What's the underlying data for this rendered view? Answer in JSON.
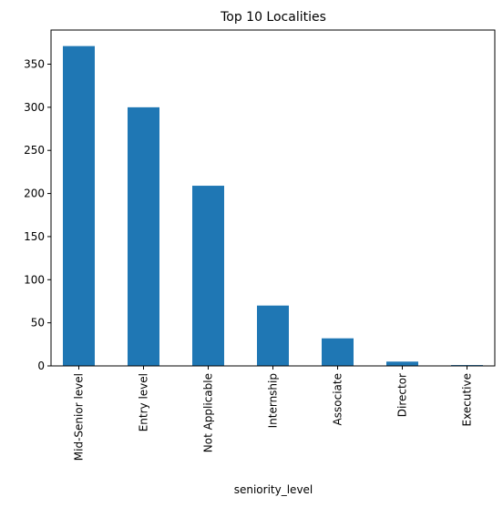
{
  "chart_data": {
    "type": "bar",
    "title": "Top 10 Localities",
    "xlabel": "seniority_level",
    "ylabel": "",
    "categories": [
      "Mid-Senior level",
      "Entry level",
      "Not Applicable",
      "Internship",
      "Associate",
      "Director",
      "Executive"
    ],
    "values": [
      371,
      300,
      209,
      70,
      32,
      5,
      1
    ],
    "ylim": [
      0,
      389.6
    ],
    "yticks": [
      0,
      50,
      100,
      150,
      200,
      250,
      300,
      350
    ],
    "bar_color": "#1f77b4",
    "grid": false,
    "legend": "none"
  }
}
